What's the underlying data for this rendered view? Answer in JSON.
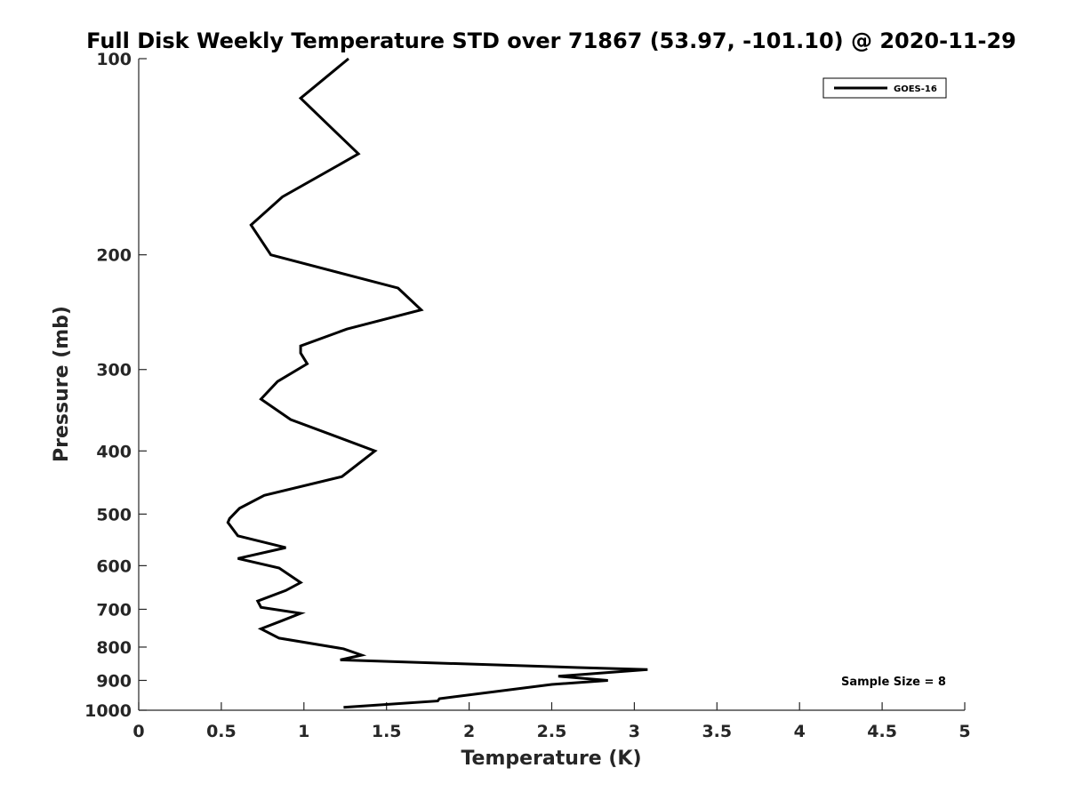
{
  "chart_data": {
    "type": "line",
    "title": "Full Disk Weekly Temperature STD over 71867 (53.97, -101.10) @ 2020-11-29",
    "xlabel": "Temperature (K)",
    "ylabel": "Pressure (mb)",
    "xlim": [
      0,
      5
    ],
    "ylim": [
      1000,
      100
    ],
    "y_scale": "log",
    "y_reversed": true,
    "grid": false,
    "legend_position": "top-right",
    "x_ticks": [
      "0",
      "0.5",
      "1",
      "1.5",
      "2",
      "2.5",
      "3",
      "3.5",
      "4",
      "4.5",
      "5"
    ],
    "y_ticks": [
      "100",
      "200",
      "300",
      "400",
      "500",
      "600",
      "700",
      "800",
      "900",
      "1000"
    ],
    "annotation": "Sample Size = 8",
    "series": [
      {
        "name": "GOES-16",
        "color": "#000000",
        "x": [
          1.27,
          0.98,
          1.33,
          0.87,
          0.68,
          0.8,
          1.57,
          1.71,
          1.26,
          0.98,
          0.98,
          1.02,
          0.84,
          0.74,
          0.92,
          1.43,
          1.23,
          0.76,
          0.61,
          0.55,
          0.54,
          0.6,
          0.89,
          0.6,
          0.85,
          0.98,
          0.89,
          0.72,
          0.74,
          0.98,
          0.86,
          0.74,
          0.85,
          1.24,
          1.35,
          1.22,
          2.66,
          3.08,
          2.54,
          2.84,
          2.5,
          1.82,
          1.81,
          1.24
        ],
        "y": [
          100,
          115,
          140,
          163,
          180,
          200,
          225,
          243,
          260,
          276,
          283,
          294,
          313,
          333,
          358,
          400,
          438,
          468,
          490,
          508,
          515,
          540,
          563,
          585,
          605,
          637,
          655,
          680,
          695,
          710,
          730,
          750,
          775,
          805,
          823,
          837,
          860,
          866,
          887,
          900,
          913,
          960,
          968,
          990
        ]
      }
    ]
  }
}
